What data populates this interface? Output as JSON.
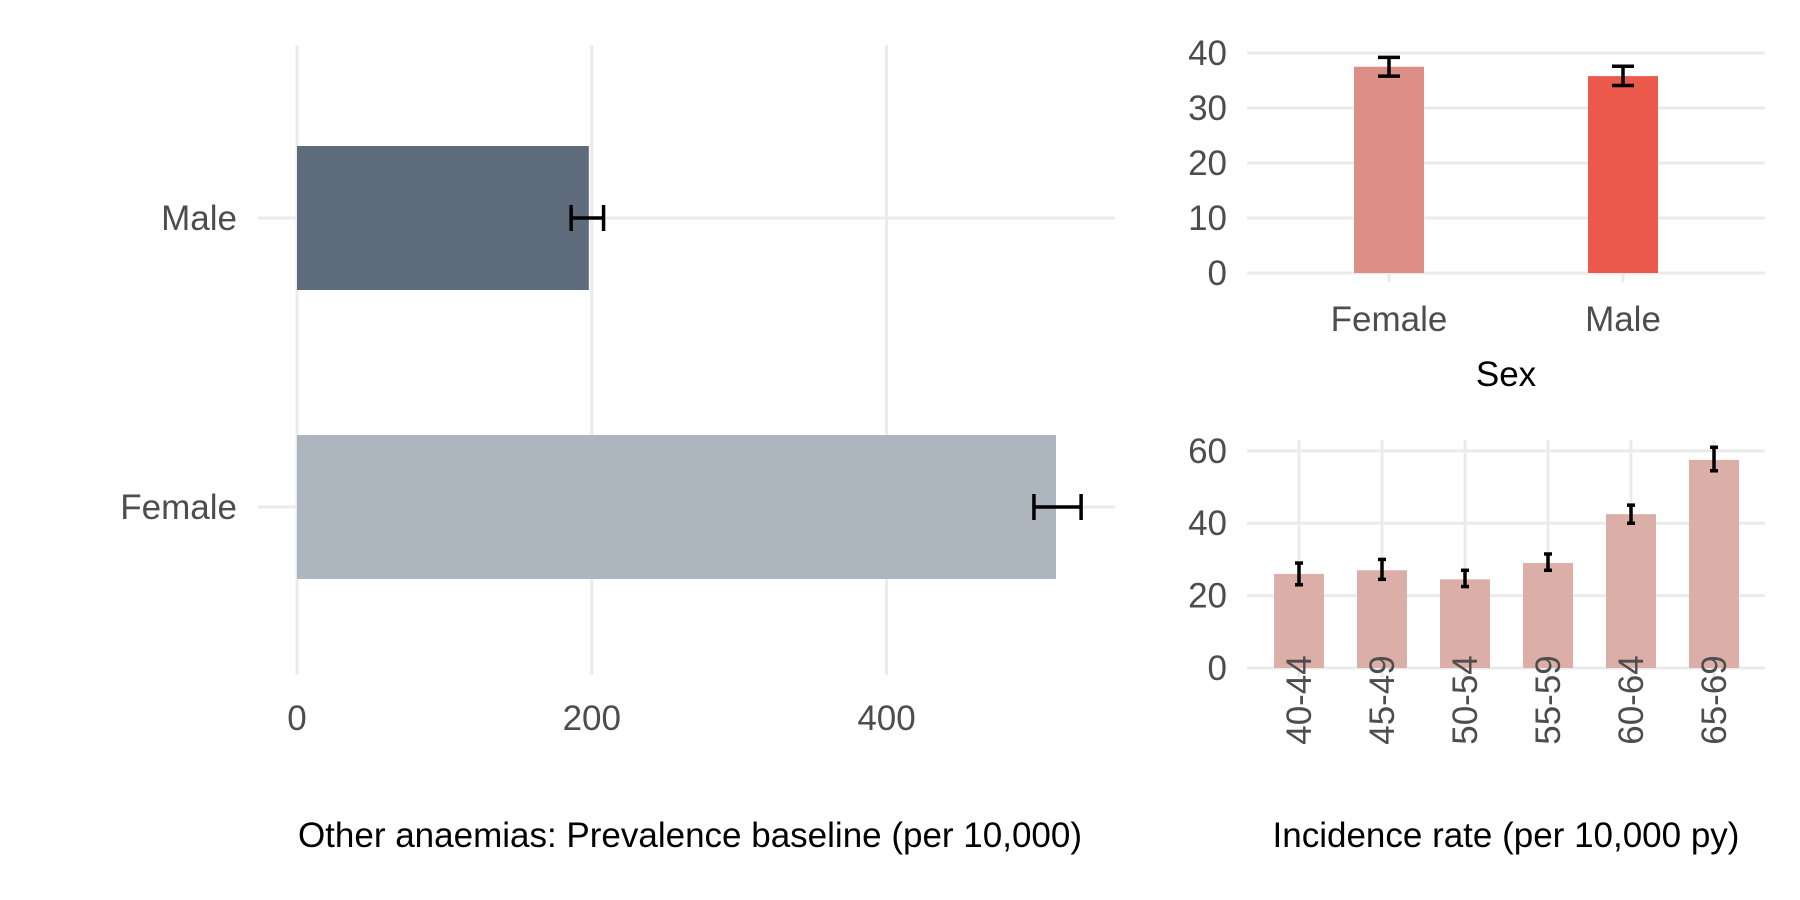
{
  "chart_data": [
    {
      "type": "bar",
      "orientation": "horizontal",
      "categories": [
        "Male",
        "Female"
      ],
      "values": [
        198,
        515
      ],
      "error_low": [
        186,
        500
      ],
      "error_high": [
        208,
        532
      ],
      "colors": [
        "#5d6b7a",
        "#adb5be"
      ],
      "xlabel": "Other anaemias: Prevalence baseline (per 10,000)",
      "xticks": [
        "0",
        "200",
        "400"
      ],
      "xlim": [
        0,
        555
      ],
      "grid": true
    },
    {
      "type": "bar",
      "categories": [
        "Female",
        "Male"
      ],
      "values": [
        37.5,
        35.8
      ],
      "error_low": [
        35.8,
        34.1
      ],
      "error_high": [
        39.2,
        37.6
      ],
      "colors": [
        "#dc8e87",
        "#eb5a4a"
      ],
      "xlabel": "Sex",
      "yticks": [
        "0",
        "10",
        "20",
        "30",
        "40"
      ],
      "ylim": [
        0,
        42
      ],
      "grid": true
    },
    {
      "type": "bar",
      "categories": [
        "40-44",
        "45-49",
        "50-54",
        "55-59",
        "60-64",
        "65-69"
      ],
      "values": [
        26,
        27,
        24.5,
        29,
        42.5,
        57.5
      ],
      "error_low": [
        23,
        24.5,
        22.5,
        27,
        40,
        54.5
      ],
      "error_high": [
        29,
        30,
        27,
        31.5,
        45,
        61
      ],
      "color": "#dbaea8",
      "xlabel": "Incidence rate (per 10,000 py)",
      "yticks": [
        "0",
        "20",
        "40",
        "60"
      ],
      "ylim": [
        0,
        63
      ],
      "grid": true
    }
  ]
}
